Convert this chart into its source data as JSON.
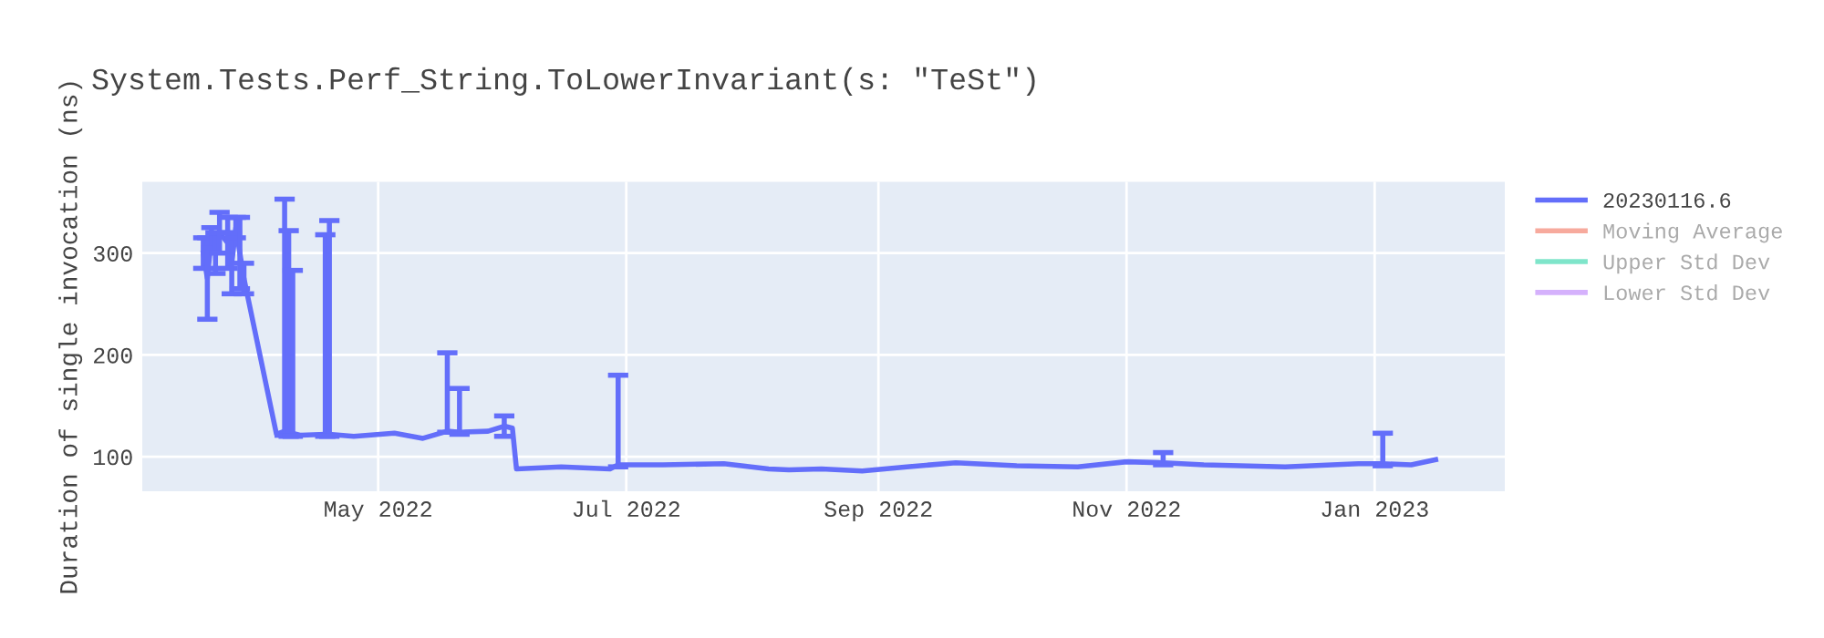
{
  "chart_data": {
    "type": "line",
    "title": "System.Tests.Perf_String.ToLowerInvariant(s: \"TeSt\")",
    "ylabel": "Duration of single invocation (ns)",
    "xlim": [
      "2022-03-04",
      "2023-02-02"
    ],
    "xticks": [
      {
        "value": "2022-05-01",
        "label": "May 2022"
      },
      {
        "value": "2022-07-01",
        "label": "Jul 2022"
      },
      {
        "value": "2022-09-01",
        "label": "Sep 2022"
      },
      {
        "value": "2022-11-01",
        "label": "Nov 2022"
      },
      {
        "value": "2023-01-01",
        "label": "Jan 2023"
      }
    ],
    "ylim": [
      66,
      370
    ],
    "yticks": [
      100,
      200,
      300
    ],
    "grid": true,
    "legend": "top right",
    "marker": "none",
    "line_style": "solid",
    "series": [
      {
        "name": "20230116.6",
        "color": "#636efa",
        "x": [
          "2022-03-19",
          "2022-03-20",
          "2022-03-21",
          "2022-03-22",
          "2022-03-23",
          "2022-03-25",
          "2022-03-26",
          "2022-03-27",
          "2022-03-28",
          "2022-03-29",
          "2022-04-06",
          "2022-04-08",
          "2022-04-09",
          "2022-04-10",
          "2022-04-12",
          "2022-04-18",
          "2022-04-19",
          "2022-04-25",
          "2022-05-05",
          "2022-05-12",
          "2022-05-18",
          "2022-05-21",
          "2022-05-28",
          "2022-06-01",
          "2022-06-03",
          "2022-06-04",
          "2022-06-15",
          "2022-06-27",
          "2022-06-29",
          "2022-07-10",
          "2022-07-25",
          "2022-08-05",
          "2022-08-10",
          "2022-08-18",
          "2022-08-28",
          "2022-09-08",
          "2022-09-20",
          "2022-10-05",
          "2022-10-20",
          "2022-11-01",
          "2022-11-10",
          "2022-11-20",
          "2022-12-10",
          "2022-12-28",
          "2023-01-03",
          "2023-01-10",
          "2023-01-16"
        ],
        "values": [
          300,
          275,
          315,
          300,
          320,
          310,
          290,
          325,
          300,
          275,
          122,
          125,
          122,
          123,
          121,
          122,
          122,
          120,
          123,
          118,
          125,
          124,
          125,
          130,
          128,
          88,
          90,
          88,
          92,
          92,
          93,
          88,
          87,
          88,
          86,
          90,
          94,
          91,
          90,
          95,
          94,
          92,
          90,
          93,
          93,
          92,
          97
        ],
        "errors": [
          15,
          40,
          10,
          20,
          20,
          25,
          30,
          10,
          35,
          15,
          null,
          [
            121,
            353
          ],
          [
            120,
            322
          ],
          [
            120,
            283
          ],
          null,
          [
            120,
            318
          ],
          [
            120,
            332
          ],
          null,
          null,
          null,
          [
            124,
            202
          ],
          [
            122,
            167
          ],
          null,
          10,
          null,
          null,
          null,
          null,
          [
            90,
            180
          ],
          null,
          null,
          null,
          null,
          null,
          null,
          null,
          null,
          null,
          null,
          null,
          [
            92,
            104
          ],
          null,
          null,
          null,
          [
            91,
            123
          ],
          null,
          null
        ]
      },
      {
        "name": "Moving Average",
        "color": "#ef553b"
      },
      {
        "name": "Upper Std Dev",
        "color": "#00cc96"
      },
      {
        "name": "Lower Std Dev",
        "color": "#ab63fa"
      }
    ]
  }
}
